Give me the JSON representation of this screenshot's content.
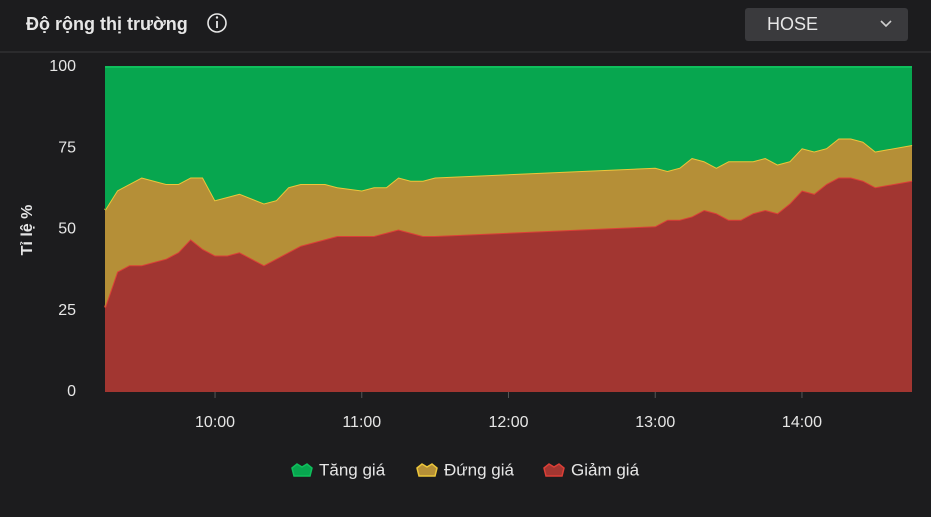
{
  "header": {
    "title": "Độ rộng thị trường",
    "dropdown": "HOSE"
  },
  "chart_data": {
    "type": "stacked-area",
    "ylabel": "Tỉ lệ %",
    "x": [
      "09:15",
      "09:20",
      "09:25",
      "09:30",
      "09:40",
      "09:45",
      "09:50",
      "09:55",
      "10:00",
      "10:05",
      "10:10",
      "10:20",
      "10:25",
      "10:30",
      "10:35",
      "10:40",
      "10:45",
      "10:50",
      "11:00",
      "11:05",
      "11:10",
      "11:15",
      "11:20",
      "11:25",
      "11:30",
      "13:00",
      "13:05",
      "13:10",
      "13:15",
      "13:20",
      "13:25",
      "13:30",
      "13:35",
      "13:40",
      "13:45",
      "13:50",
      "13:55",
      "14:00",
      "14:05",
      "14:10",
      "14:15",
      "14:20",
      "14:25",
      "14:30",
      "14:45"
    ],
    "xlim": [
      "09:15",
      "14:45"
    ],
    "xticks": [
      "10:00",
      "11:00",
      "12:00",
      "13:00",
      "14:00"
    ],
    "ylim": [
      0,
      100
    ],
    "yticks": [
      0,
      25,
      50,
      75,
      100
    ],
    "series": [
      {
        "name": "Tăng giá",
        "color": "#07a64f",
        "line_color": "#0fbf5c",
        "values": [
          44,
          38,
          36,
          34,
          36,
          36,
          34,
          34,
          41,
          40,
          39,
          42,
          41,
          37,
          36,
          36,
          36,
          37,
          38,
          37,
          37,
          34,
          35,
          35,
          34,
          31,
          32,
          31,
          28,
          29,
          31,
          29,
          29,
          29,
          28,
          30,
          29,
          25,
          26,
          25,
          22,
          22,
          23,
          26,
          24
        ]
      },
      {
        "name": "Đứng giá",
        "color": "#b58f37",
        "line_color": "#ecc63a",
        "values": [
          30,
          25,
          25,
          27,
          23,
          21,
          19,
          22,
          17,
          18,
          18,
          19,
          18,
          20,
          19,
          18,
          17,
          15,
          14,
          15,
          14,
          16,
          16,
          17,
          18,
          18,
          15,
          16,
          18,
          15,
          14,
          18,
          18,
          16,
          16,
          15,
          13,
          13,
          13,
          11,
          12,
          12,
          12,
          11,
          11
        ]
      },
      {
        "name": "Giảm giá",
        "color": "#a23631",
        "line_color": "#dc3f37",
        "values": [
          26,
          37,
          39,
          39,
          41,
          43,
          47,
          44,
          42,
          42,
          43,
          39,
          41,
          43,
          45,
          46,
          47,
          48,
          48,
          48,
          49,
          50,
          49,
          48,
          48,
          51,
          53,
          53,
          54,
          56,
          55,
          53,
          53,
          55,
          56,
          55,
          58,
          62,
          61,
          64,
          66,
          66,
          65,
          63,
          65
        ]
      }
    ]
  }
}
